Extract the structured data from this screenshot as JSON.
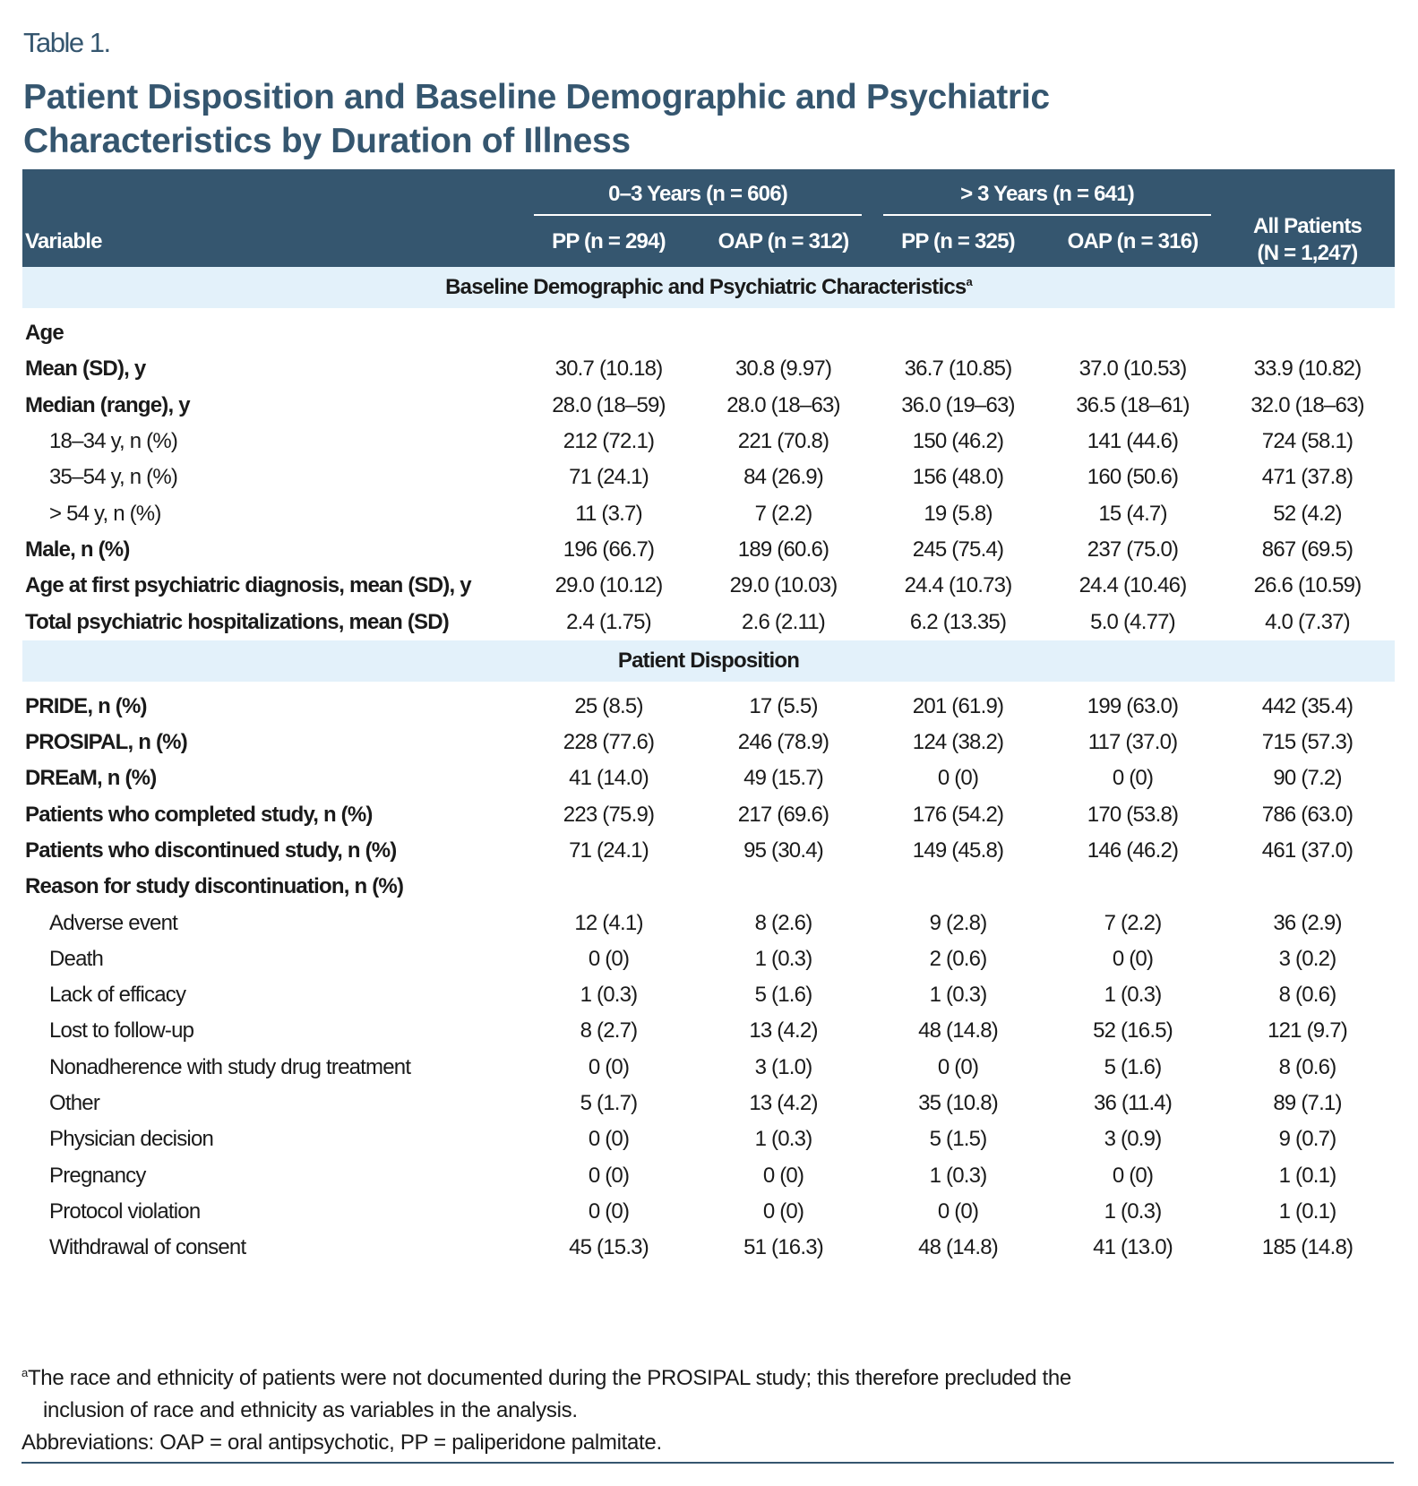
{
  "table_label": "Table 1.",
  "title": "Patient Disposition and Baseline Demographic and Psychiatric Characteristics by Duration of Illness",
  "header": {
    "variable": "Variable",
    "group1": "0–3 Years (n = 606)",
    "group2": "> 3 Years (n = 641)",
    "all_line1": "All Patients",
    "all_line2": "(N = 1,247)",
    "cols": [
      "PP (n = 294)",
      "OAP (n = 312)",
      "PP (n = 325)",
      "OAP (n = 316)"
    ]
  },
  "sections": [
    {
      "title": "Baseline Demographic and Psychiatric Characteristics",
      "title_sup": "a",
      "rows": [
        {
          "label": "Age",
          "bold": true,
          "values": []
        },
        {
          "label": "Mean (SD), y",
          "bold": true,
          "values": [
            "30.7 (10.18)",
            "30.8 (9.97)",
            "36.7 (10.85)",
            "37.0 (10.53)",
            "33.9 (10.82)"
          ]
        },
        {
          "label": "Median (range), y",
          "bold": true,
          "values": [
            "28.0 (18–59)",
            "28.0 (18–63)",
            "36.0 (19–63)",
            "36.5 (18–61)",
            "32.0 (18–63)"
          ]
        },
        {
          "label": "18–34 y, n (%)",
          "indent": true,
          "values": [
            "212 (72.1)",
            "221 (70.8)",
            "150 (46.2)",
            "141 (44.6)",
            "724 (58.1)"
          ]
        },
        {
          "label": "35–54 y, n (%)",
          "indent": true,
          "values": [
            "71 (24.1)",
            "84 (26.9)",
            "156 (48.0)",
            "160 (50.6)",
            "471 (37.8)"
          ]
        },
        {
          "label": "> 54 y, n (%)",
          "indent": true,
          "values": [
            "11 (3.7)",
            "7 (2.2)",
            "19 (5.8)",
            "15 (4.7)",
            "52 (4.2)"
          ]
        },
        {
          "label": "Male, n (%)",
          "bold": true,
          "values": [
            "196 (66.7)",
            "189 (60.6)",
            "245 (75.4)",
            "237 (75.0)",
            "867 (69.5)"
          ]
        },
        {
          "label": "Age at first psychiatric diagnosis, mean (SD), y",
          "bold": true,
          "values": [
            "29.0 (10.12)",
            "29.0 (10.03)",
            "24.4 (10.73)",
            "24.4 (10.46)",
            "26.6 (10.59)"
          ]
        },
        {
          "label": "Total psychiatric hospitalizations, mean (SD)",
          "bold": true,
          "values": [
            "2.4 (1.75)",
            "2.6 (2.11)",
            "6.2 (13.35)",
            "5.0 (4.77)",
            "4.0 (7.37)"
          ]
        }
      ]
    },
    {
      "title": "Patient Disposition",
      "rows": [
        {
          "label": "PRIDE, n (%)",
          "bold": true,
          "values": [
            "25 (8.5)",
            "17 (5.5)",
            "201 (61.9)",
            "199 (63.0)",
            "442 (35.4)"
          ]
        },
        {
          "label": "PROSIPAL, n (%)",
          "bold": true,
          "values": [
            "228 (77.6)",
            "246 (78.9)",
            "124 (38.2)",
            "117 (37.0)",
            "715 (57.3)"
          ]
        },
        {
          "label": "DREaM, n (%)",
          "bold": true,
          "values": [
            "41 (14.0)",
            "49 (15.7)",
            "0 (0)",
            "0 (0)",
            "90 (7.2)"
          ]
        },
        {
          "label": "Patients who completed study, n (%)",
          "bold": true,
          "values": [
            "223 (75.9)",
            "217 (69.6)",
            "176 (54.2)",
            "170 (53.8)",
            "786 (63.0)"
          ]
        },
        {
          "label": "Patients who discontinued study, n (%)",
          "bold": true,
          "values": [
            "71 (24.1)",
            "95 (30.4)",
            "149 (45.8)",
            "146 (46.2)",
            "461 (37.0)"
          ]
        },
        {
          "label": "Reason for study discontinuation, n (%)",
          "bold": true,
          "values": []
        },
        {
          "label": "Adverse event",
          "indent": true,
          "values": [
            "12 (4.1)",
            "8 (2.6)",
            "9 (2.8)",
            "7 (2.2)",
            "36 (2.9)"
          ]
        },
        {
          "label": "Death",
          "indent": true,
          "values": [
            "0 (0)",
            "1 (0.3)",
            "2 (0.6)",
            "0 (0)",
            "3 (0.2)"
          ]
        },
        {
          "label": "Lack of efficacy",
          "indent": true,
          "values": [
            "1 (0.3)",
            "5 (1.6)",
            "1 (0.3)",
            "1 (0.3)",
            "8 (0.6)"
          ]
        },
        {
          "label": "Lost to follow-up",
          "indent": true,
          "values": [
            "8 (2.7)",
            "13 (4.2)",
            "48 (14.8)",
            "52 (16.5)",
            "121 (9.7)"
          ]
        },
        {
          "label": "Nonadherence with study drug treatment",
          "indent": true,
          "values": [
            "0 (0)",
            "3 (1.0)",
            "0 (0)",
            "5 (1.6)",
            "8 (0.6)"
          ]
        },
        {
          "label": "Other",
          "indent": true,
          "values": [
            "5 (1.7)",
            "13 (4.2)",
            "35 (10.8)",
            "36 (11.4)",
            "89 (7.1)"
          ]
        },
        {
          "label": "Physician decision",
          "indent": true,
          "values": [
            "0 (0)",
            "1 (0.3)",
            "5 (1.5)",
            "3 (0.9)",
            "9 (0.7)"
          ]
        },
        {
          "label": "Pregnancy",
          "indent": true,
          "values": [
            "0 (0)",
            "0 (0)",
            "1 (0.3)",
            "0 (0)",
            "1 (0.1)"
          ]
        },
        {
          "label": "Protocol violation",
          "indent": true,
          "values": [
            "0 (0)",
            "0 (0)",
            "0 (0)",
            "1 (0.3)",
            "1 (0.1)"
          ]
        },
        {
          "label": "Withdrawal of consent",
          "indent": true,
          "values": [
            "45 (15.3)",
            "51 (16.3)",
            "48 (14.8)",
            "41 (13.0)",
            "185 (14.8)"
          ]
        }
      ]
    }
  ],
  "footnotes": {
    "marker": "a",
    "note_line1": "The race and ethnicity of patients were not documented during the PROSIPAL study; this therefore precluded the",
    "note_line2": "inclusion of race and ethnicity as variables in the analysis.",
    "abbreviations": "Abbreviations: OAP = oral antipsychotic, PP = paliperidone palmitate."
  },
  "colors": {
    "header_bg": "#35566f",
    "band_bg": "#e3f1fa",
    "title": "#35566f"
  }
}
